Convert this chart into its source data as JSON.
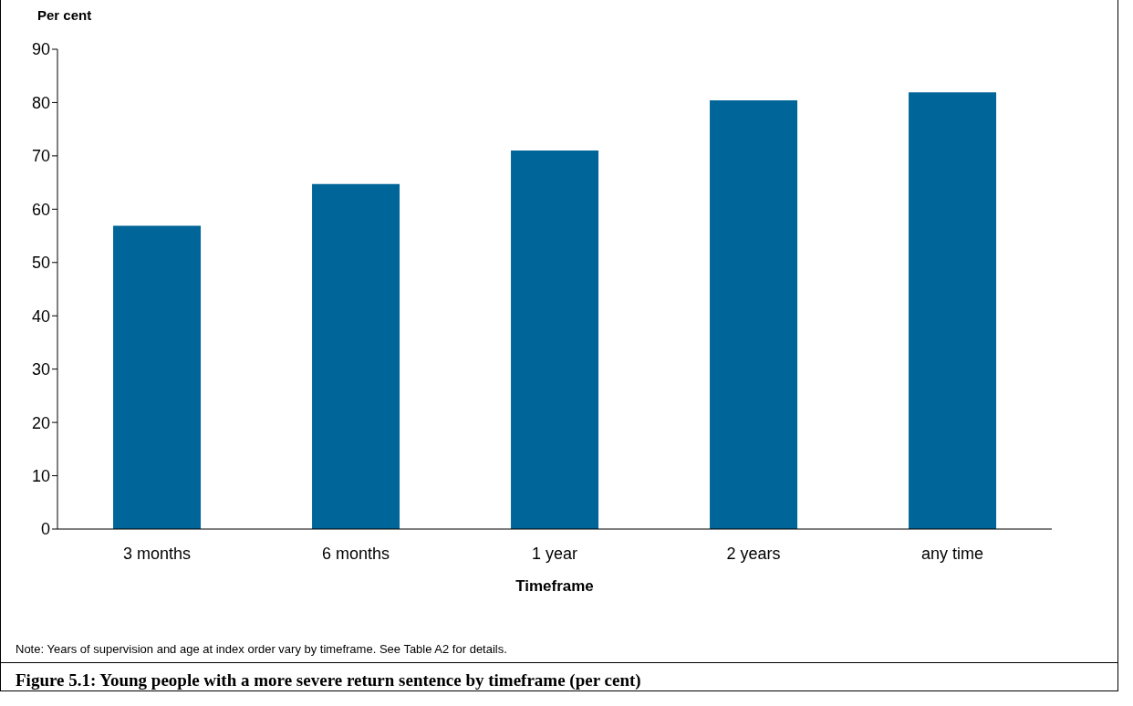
{
  "chart_data": {
    "type": "bar",
    "title": "Figure 5.1: Young people with a more severe return sentence by timeframe (per cent)",
    "ylabel": "Per cent",
    "xlabel": "Timeframe",
    "categories": [
      "3 months",
      "6 months",
      "1 year",
      "2 years",
      "any time"
    ],
    "values": [
      56.9,
      64.7,
      71.0,
      80.4,
      81.9
    ],
    "color": "#006699",
    "ylim": [
      0,
      90
    ],
    "yticks": [
      0,
      10,
      20,
      30,
      40,
      50,
      60,
      70,
      80,
      90
    ],
    "grid": false,
    "annotations": [
      "Note: Years of supervision and age at index order vary by timeframe. See Table A2 for details."
    ]
  }
}
